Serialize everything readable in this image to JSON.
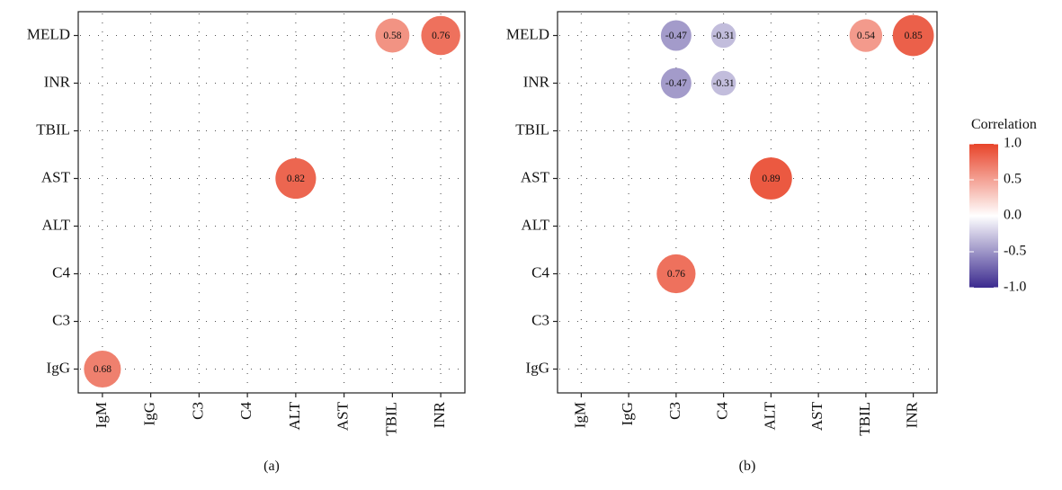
{
  "chart_data": [
    {
      "type": "heatmap",
      "panel_label": "(a)",
      "x_categories": [
        "IgM",
        "IgG",
        "C3",
        "C4",
        "ALT",
        "AST",
        "TBIL",
        "INR"
      ],
      "y_categories": [
        "MELD",
        "INR",
        "TBIL",
        "AST",
        "ALT",
        "C4",
        "C3",
        "IgG"
      ],
      "cells": [
        {
          "x": "TBIL",
          "y": "MELD",
          "value": 0.58,
          "label": "0.58"
        },
        {
          "x": "INR",
          "y": "MELD",
          "value": 0.76,
          "label": "0.76"
        },
        {
          "x": "ALT",
          "y": "AST",
          "value": 0.82,
          "label": "0.82"
        },
        {
          "x": "IgM",
          "y": "IgG",
          "value": 0.68,
          "label": "0.68"
        }
      ]
    },
    {
      "type": "heatmap",
      "panel_label": "(b)",
      "x_categories": [
        "IgM",
        "IgG",
        "C3",
        "C4",
        "ALT",
        "AST",
        "TBIL",
        "INR"
      ],
      "y_categories": [
        "MELD",
        "INR",
        "TBIL",
        "AST",
        "ALT",
        "C4",
        "C3",
        "IgG"
      ],
      "cells": [
        {
          "x": "C3",
          "y": "MELD",
          "value": -0.47,
          "label": "-0.47"
        },
        {
          "x": "C4",
          "y": "MELD",
          "value": -0.31,
          "label": "-0.31"
        },
        {
          "x": "TBIL",
          "y": "MELD",
          "value": 0.54,
          "label": "0.54"
        },
        {
          "x": "INR",
          "y": "MELD",
          "value": 0.85,
          "label": "0.85"
        },
        {
          "x": "C3",
          "y": "INR",
          "value": -0.47,
          "label": "-0.47"
        },
        {
          "x": "C4",
          "y": "INR",
          "value": -0.31,
          "label": "-0.31"
        },
        {
          "x": "ALT",
          "y": "AST",
          "value": 0.89,
          "label": "0.89"
        },
        {
          "x": "C3",
          "y": "C4",
          "value": 0.76,
          "label": "0.76"
        }
      ]
    }
  ],
  "legend": {
    "title": "Correlation",
    "ticks": [
      "1.0",
      "0.5",
      "0.0",
      "-0.5",
      "-1.0"
    ],
    "tick_values": [
      1.0,
      0.5,
      0.0,
      -0.5,
      -1.0
    ],
    "range": [
      -1.0,
      1.0
    ],
    "colors": {
      "high": "#e8442a",
      "mid": "#ffffff",
      "low": "#3b2a8f"
    }
  }
}
